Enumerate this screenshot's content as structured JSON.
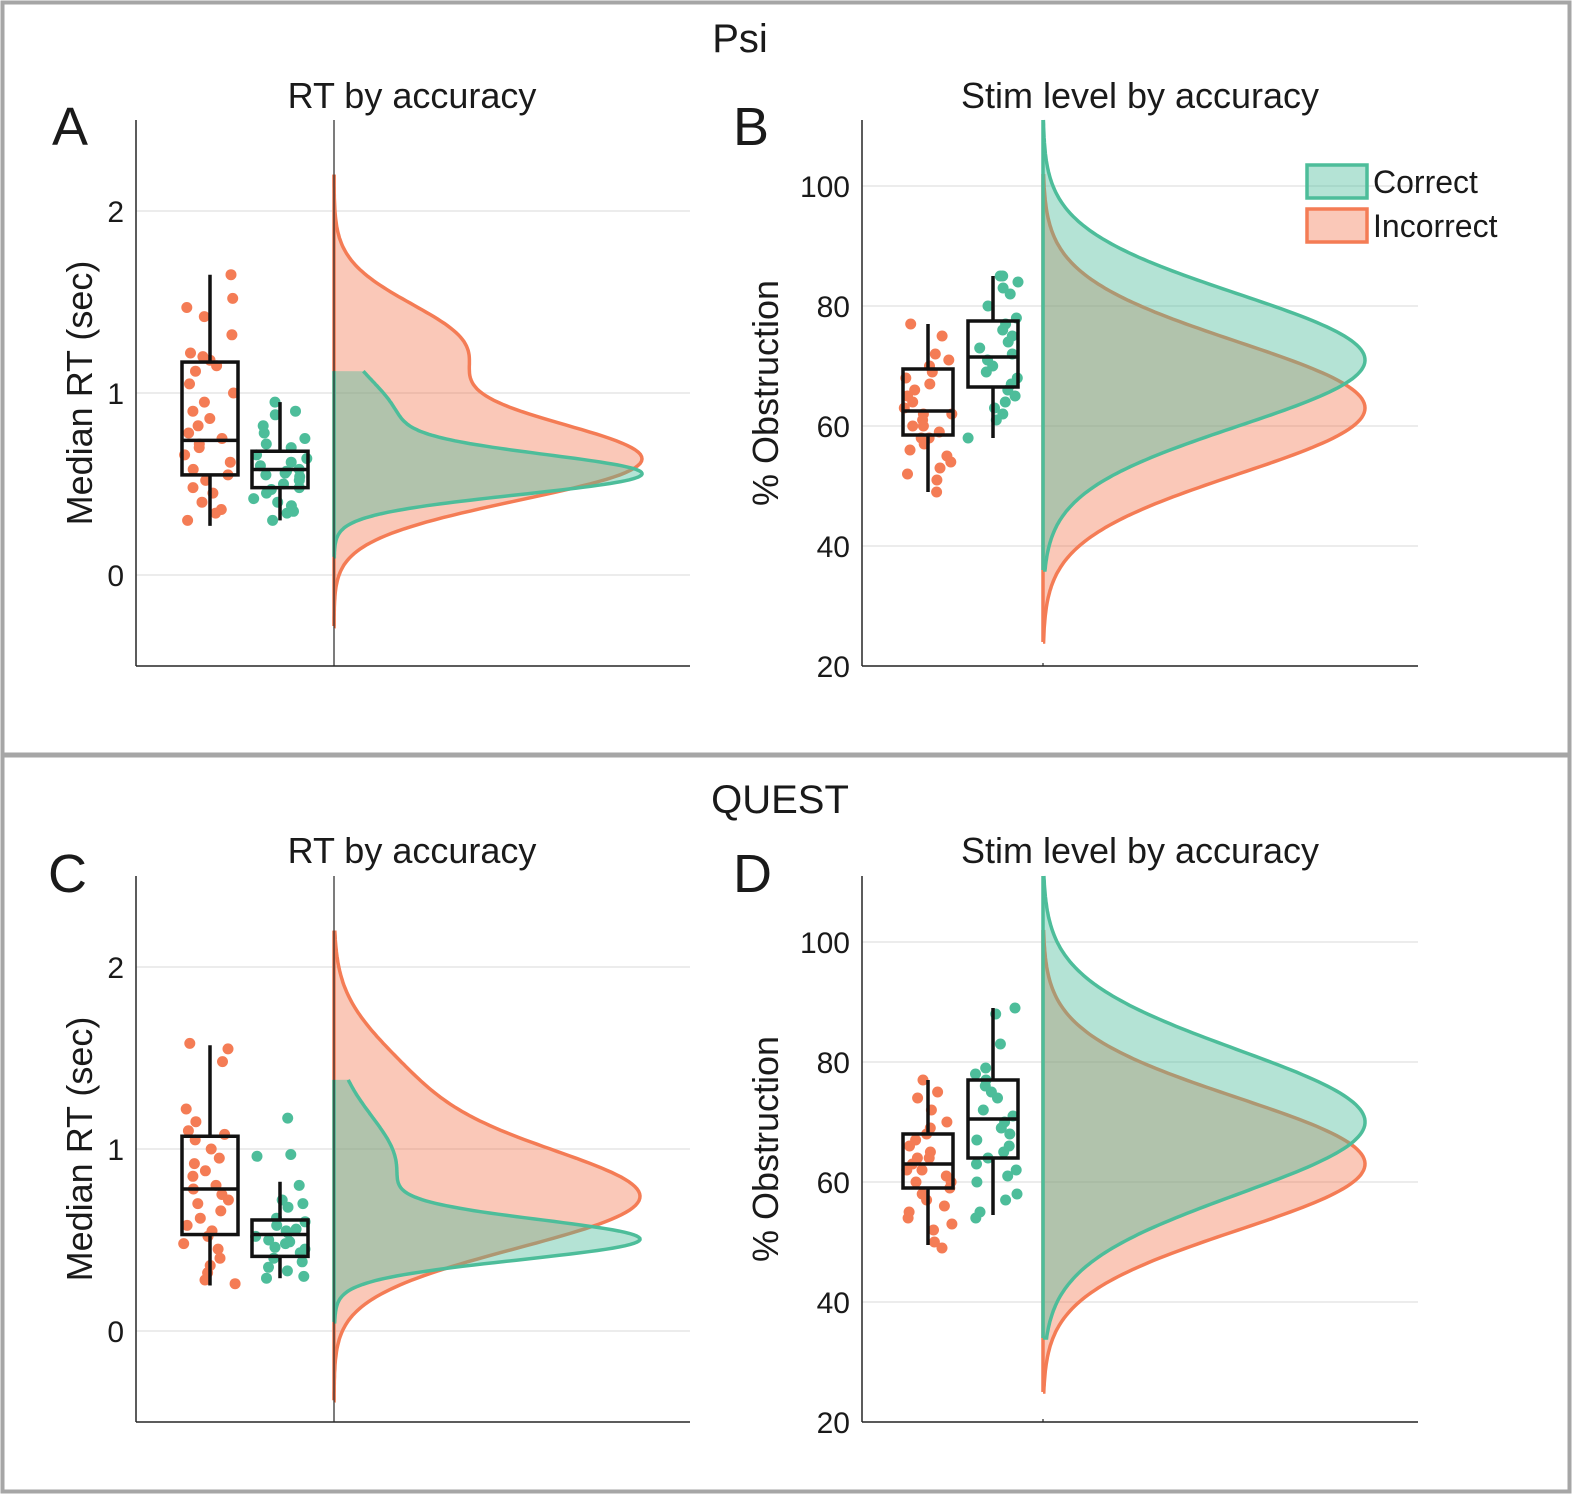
{
  "colors": {
    "correct": "#4dbd9a",
    "incorrect": "#f47c55",
    "box": "#111111",
    "grid": "#e6e6e6",
    "frame": "#a6a6a6"
  },
  "sections": [
    {
      "title": "Psi",
      "charts": [
        {
          "letter": "A",
          "chart_data": {
            "type": "raincloud",
            "title": "RT by accuracy",
            "ylabel": "Median RT (sec)",
            "ylim": [
              -0.5,
              2.5
            ],
            "yticks": [
              0,
              1,
              2
            ],
            "grid": true,
            "series": [
              {
                "name": "Incorrect",
                "color_key": "incorrect",
                "points": [
                  1.65,
                  1.52,
                  1.47,
                  1.42,
                  1.32,
                  1.22,
                  1.2,
                  1.18,
                  1.15,
                  1.12,
                  1.05,
                  1.0,
                  0.95,
                  0.9,
                  0.86,
                  0.82,
                  0.78,
                  0.75,
                  0.72,
                  0.7,
                  0.66,
                  0.62,
                  0.58,
                  0.55,
                  0.52,
                  0.48,
                  0.45,
                  0.4,
                  0.36,
                  0.34,
                  0.3
                ],
                "box": {
                  "q1": 0.55,
                  "median": 0.74,
                  "q3": 1.17,
                  "whisker_low": 0.27,
                  "whisker_high": 1.65
                },
                "density": {
                  "min": -0.28,
                  "max": 2.2,
                  "modes": [
                    [
                      0.63,
                      0.22,
                      1.0
                    ],
                    [
                      1.25,
                      0.24,
                      0.42
                    ]
                  ]
                }
              },
              {
                "name": "Correct",
                "color_key": "correct",
                "points": [
                  0.95,
                  0.9,
                  0.88,
                  0.82,
                  0.78,
                  0.75,
                  0.72,
                  0.7,
                  0.66,
                  0.64,
                  0.62,
                  0.6,
                  0.58,
                  0.57,
                  0.56,
                  0.55,
                  0.54,
                  0.52,
                  0.5,
                  0.48,
                  0.47,
                  0.45,
                  0.42,
                  0.4,
                  0.38,
                  0.35,
                  0.34,
                  0.3
                ],
                "box": {
                  "q1": 0.48,
                  "median": 0.58,
                  "q3": 0.68,
                  "whisker_low": 0.3,
                  "whisker_high": 0.95
                },
                "density": {
                  "min": 0.1,
                  "max": 1.12,
                  "modes": [
                    [
                      0.55,
                      0.11,
                      1.0
                    ],
                    [
                      0.85,
                      0.22,
                      0.22
                    ]
                  ]
                }
              }
            ]
          }
        },
        {
          "letter": "B",
          "chart_data": {
            "type": "raincloud",
            "title": "Stim level by accuracy",
            "ylabel": "% Obstruction",
            "ylim": [
              20,
              111
            ],
            "yticks": [
              20,
              40,
              60,
              80,
              100
            ],
            "grid": true,
            "legend": {
              "position": "top-right",
              "entries": [
                "Correct",
                "Incorrect"
              ]
            },
            "series": [
              {
                "name": "Incorrect",
                "color_key": "incorrect",
                "points": [
                  77,
                  75,
                  72,
                  71,
                  70,
                  69,
                  68,
                  67,
                  66,
                  65,
                  64,
                  63,
                  62,
                  62,
                  61,
                  60,
                  60,
                  59,
                  58,
                  58,
                  57,
                  56,
                  55,
                  54,
                  53,
                  52,
                  51,
                  49
                ],
                "box": {
                  "q1": 58.5,
                  "median": 62.5,
                  "q3": 69.5,
                  "whisker_low": 49,
                  "whisker_high": 77
                },
                "density": {
                  "min": 24,
                  "max": 102,
                  "modes": [
                    [
                      63,
                      11,
                      1.0
                    ]
                  ]
                }
              },
              {
                "name": "Correct",
                "color_key": "correct",
                "points": [
                  85,
                  85,
                  84,
                  83,
                  82,
                  80,
                  78,
                  77,
                  76,
                  75,
                  74,
                  73,
                  72,
                  71,
                  70,
                  69,
                  68,
                  67,
                  66,
                  65,
                  64,
                  63,
                  62,
                  61,
                  58
                ],
                "box": {
                  "q1": 66.5,
                  "median": 71.5,
                  "q3": 77.5,
                  "whisker_low": 58,
                  "whisker_high": 85
                },
                "density": {
                  "min": 36,
                  "max": 111,
                  "modes": [
                    [
                      71,
                      11,
                      1.0
                    ]
                  ]
                }
              }
            ]
          }
        }
      ]
    },
    {
      "title": "QUEST",
      "charts": [
        {
          "letter": "C",
          "chart_data": {
            "type": "raincloud",
            "title": "RT by accuracy",
            "ylabel": "Median RT (sec)",
            "ylim": [
              -0.5,
              2.5
            ],
            "yticks": [
              0,
              1,
              2
            ],
            "grid": true,
            "series": [
              {
                "name": "Incorrect",
                "color_key": "incorrect",
                "points": [
                  1.58,
                  1.55,
                  1.48,
                  1.22,
                  1.15,
                  1.1,
                  1.08,
                  1.05,
                  1.0,
                  0.95,
                  0.92,
                  0.88,
                  0.85,
                  0.8,
                  0.78,
                  0.75,
                  0.72,
                  0.7,
                  0.66,
                  0.62,
                  0.58,
                  0.55,
                  0.52,
                  0.48,
                  0.45,
                  0.4,
                  0.36,
                  0.32,
                  0.28,
                  0.26
                ],
                "box": {
                  "q1": 0.53,
                  "median": 0.78,
                  "q3": 1.07,
                  "whisker_low": 0.25,
                  "whisker_high": 1.57
                },
                "density": {
                  "min": -0.38,
                  "max": 2.2,
                  "modes": [
                    [
                      0.72,
                      0.27,
                      1.0
                    ],
                    [
                      1.3,
                      0.3,
                      0.25
                    ]
                  ]
                }
              },
              {
                "name": "Correct",
                "color_key": "correct",
                "points": [
                  1.17,
                  0.97,
                  0.96,
                  0.8,
                  0.72,
                  0.7,
                  0.68,
                  0.62,
                  0.6,
                  0.58,
                  0.56,
                  0.55,
                  0.54,
                  0.52,
                  0.5,
                  0.49,
                  0.48,
                  0.46,
                  0.45,
                  0.43,
                  0.4,
                  0.38,
                  0.35,
                  0.33,
                  0.3,
                  0.29
                ],
                "box": {
                  "q1": 0.41,
                  "median": 0.53,
                  "q3": 0.61,
                  "whisker_low": 0.29,
                  "whisker_high": 0.82
                },
                "density": {
                  "min": 0.05,
                  "max": 1.38,
                  "modes": [
                    [
                      0.5,
                      0.11,
                      1.0
                    ],
                    [
                      0.9,
                      0.28,
                      0.22
                    ]
                  ]
                }
              }
            ]
          }
        },
        {
          "letter": "D",
          "chart_data": {
            "type": "raincloud",
            "title": "Stim level by accuracy",
            "ylabel": "% Obstruction",
            "ylim": [
              20,
              111
            ],
            "yticks": [
              20,
              40,
              60,
              80,
              100
            ],
            "grid": true,
            "series": [
              {
                "name": "Incorrect",
                "color_key": "incorrect",
                "points": [
                  77,
                  75,
                  74,
                  72,
                  70,
                  69,
                  68,
                  67,
                  66,
                  65,
                  64,
                  64,
                  63,
                  62,
                  62,
                  61,
                  60,
                  60,
                  59,
                  58,
                  57,
                  56,
                  55,
                  54,
                  53,
                  52,
                  50,
                  49
                ],
                "box": {
                  "q1": 59,
                  "median": 63,
                  "q3": 68,
                  "whisker_low": 49.5,
                  "whisker_high": 77
                },
                "density": {
                  "min": 25,
                  "max": 102,
                  "modes": [
                    [
                      63,
                      11,
                      1.0
                    ]
                  ]
                }
              },
              {
                "name": "Correct",
                "color_key": "correct",
                "points": [
                  89,
                  88,
                  83,
                  79,
                  78,
                  77,
                  76,
                  75,
                  74,
                  72,
                  71,
                  70,
                  69,
                  68,
                  67,
                  66,
                  65,
                  64,
                  63,
                  62,
                  61,
                  60,
                  58,
                  57,
                  55,
                  54
                ],
                "box": {
                  "q1": 64,
                  "median": 70.5,
                  "q3": 77,
                  "whisker_low": 54.5,
                  "whisker_high": 89
                },
                "density": {
                  "min": 34,
                  "max": 111,
                  "modes": [
                    [
                      70,
                      12,
                      1.0
                    ]
                  ]
                }
              }
            ]
          }
        }
      ]
    }
  ]
}
